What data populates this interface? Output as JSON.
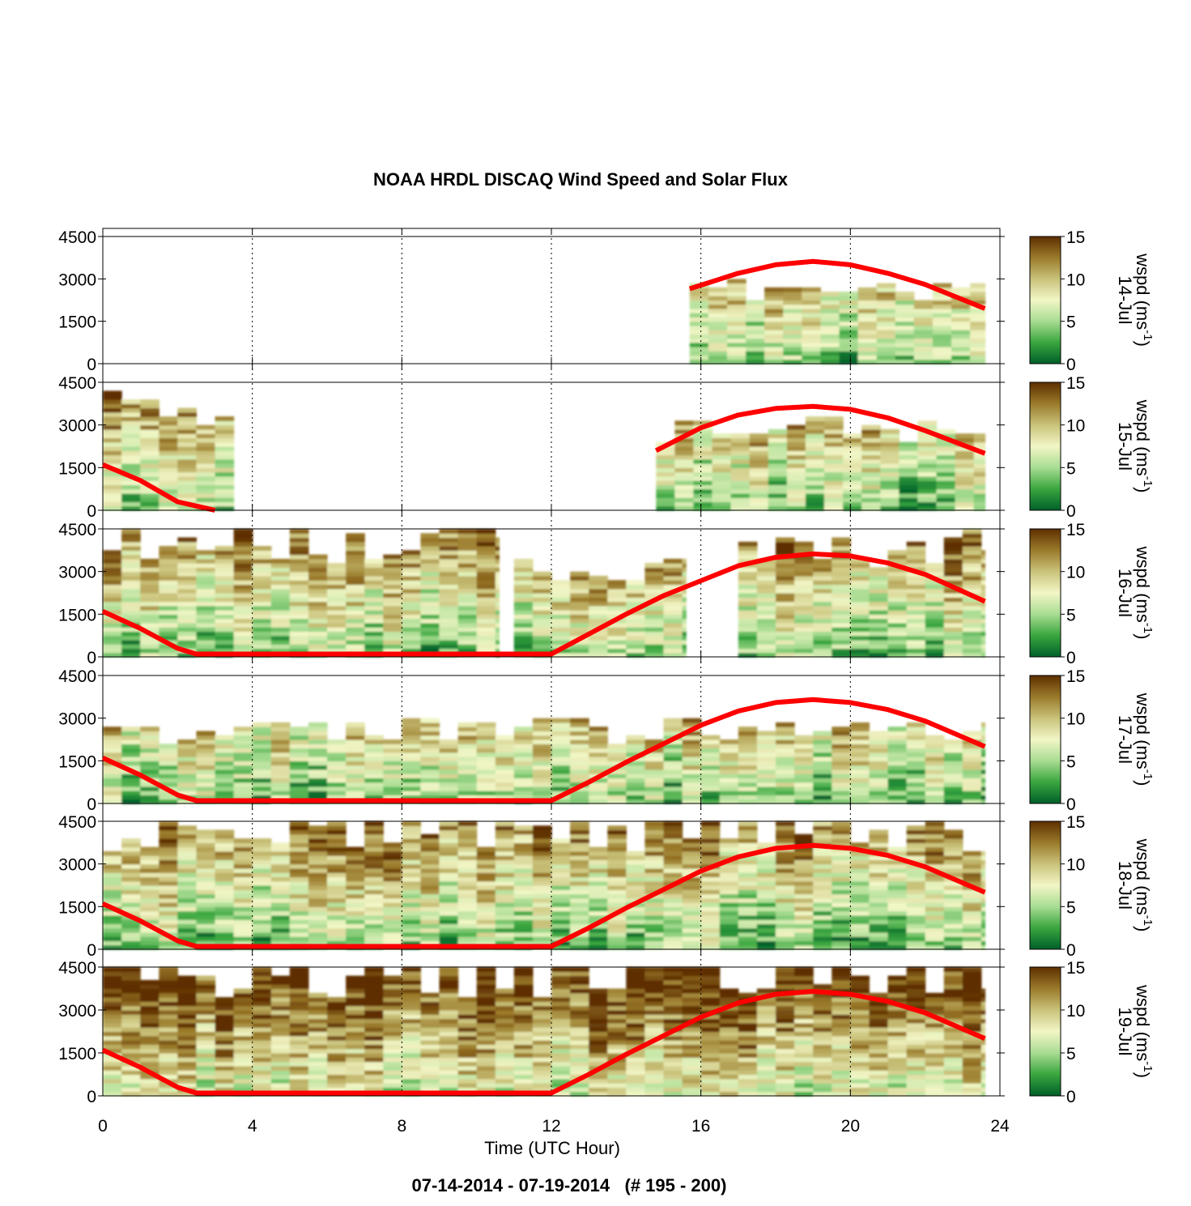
{
  "chart_data": {
    "type": "heatmap",
    "title": "NOAA HRDL DISCAQ Wind Speed and Solar Flux",
    "footer": "07-14-2014 - 07-19-2014   (# 195 - 200)",
    "xlabel": "Time (UTC Hour)",
    "xlim": [
      0,
      24
    ],
    "x_ticks": [
      "0",
      "4",
      "8",
      "12",
      "16",
      "20",
      "24"
    ],
    "ylim": [
      0,
      4500
    ],
    "y_ticks": [
      "0",
      "1500",
      "3000",
      "4500"
    ],
    "colorbar": {
      "label": "wspd (ms",
      "label_exponent": "-1",
      "label_close": ")",
      "range": [
        0,
        15
      ],
      "ticks": [
        "0",
        "5",
        "10",
        "15"
      ],
      "colors": [
        "#00602a",
        "#3aa63e",
        "#a8dc92",
        "#f2f6c6",
        "#c9c27a",
        "#9a7a2a",
        "#5e2f00"
      ]
    },
    "panels": [
      {
        "day_label": "14-Jul",
        "data_segments": [
          [
            15.7,
            23.6
          ]
        ],
        "blocks": [
          {
            "x0": 15.7,
            "x1": 23.6,
            "ytop": 2800
          }
        ],
        "solar_flux": [
          [
            15.7,
            2650
          ],
          [
            17,
            3200
          ],
          [
            18,
            3500
          ],
          [
            19,
            3620
          ],
          [
            20,
            3500
          ],
          [
            21,
            3200
          ],
          [
            22,
            2800
          ],
          [
            23.6,
            1950
          ]
        ]
      },
      {
        "day_label": "15-Jul",
        "data_segments": [
          [
            0,
            3.5
          ],
          [
            14.8,
            23.6
          ]
        ],
        "blocks": [
          {
            "x0": 0,
            "x1": 3.5,
            "ytop": 3800
          },
          {
            "x0": 14.8,
            "x1": 23.6,
            "ytop": 3000
          }
        ],
        "solar_flux": [
          [
            0,
            1600
          ],
          [
            1,
            1050
          ],
          [
            2,
            300
          ],
          [
            3,
            0
          ],
          [
            14.8,
            2100
          ],
          [
            16,
            2900
          ],
          [
            17,
            3350
          ],
          [
            18,
            3580
          ],
          [
            19,
            3650
          ],
          [
            20,
            3550
          ],
          [
            21,
            3250
          ],
          [
            22,
            2800
          ],
          [
            23.6,
            2000
          ]
        ]
      },
      {
        "day_label": "16-Jul",
        "data_segments": [
          [
            0,
            10.6
          ],
          [
            11,
            15.6
          ],
          [
            17,
            23.6
          ]
        ],
        "blocks": [
          {
            "x0": 0,
            "x1": 10.6,
            "ytop": 4300
          },
          {
            "x0": 11,
            "x1": 15.6,
            "ytop": 3400
          },
          {
            "x0": 17,
            "x1": 23.6,
            "ytop": 4000
          }
        ],
        "solar_flux": [
          [
            0,
            1600
          ],
          [
            1,
            1000
          ],
          [
            2,
            300
          ],
          [
            2.5,
            100
          ],
          [
            12,
            100
          ],
          [
            13,
            800
          ],
          [
            14,
            1500
          ],
          [
            15,
            2150
          ],
          [
            17,
            3200
          ],
          [
            18,
            3500
          ],
          [
            19,
            3620
          ],
          [
            20,
            3550
          ],
          [
            21,
            3300
          ],
          [
            22,
            2900
          ],
          [
            23.6,
            1950
          ]
        ]
      },
      {
        "day_label": "17-Jul",
        "data_segments": [
          [
            0,
            23.6
          ]
        ],
        "blocks": [
          {
            "x0": 0,
            "x1": 23.6,
            "ytop": 2700
          }
        ],
        "solar_flux": [
          [
            0,
            1600
          ],
          [
            1,
            1000
          ],
          [
            2,
            300
          ],
          [
            2.5,
            100
          ],
          [
            12,
            100
          ],
          [
            13,
            750
          ],
          [
            14,
            1450
          ],
          [
            15,
            2100
          ],
          [
            16,
            2750
          ],
          [
            17,
            3250
          ],
          [
            18,
            3550
          ],
          [
            19,
            3650
          ],
          [
            20,
            3550
          ],
          [
            21,
            3300
          ],
          [
            22,
            2900
          ],
          [
            23.6,
            2000
          ]
        ]
      },
      {
        "day_label": "18-Jul",
        "data_segments": [
          [
            0,
            23.6
          ]
        ],
        "blocks": [
          {
            "x0": 0,
            "x1": 23.6,
            "ytop": 4500
          }
        ],
        "solar_flux": [
          [
            0,
            1600
          ],
          [
            1,
            1000
          ],
          [
            2,
            300
          ],
          [
            2.5,
            100
          ],
          [
            12,
            100
          ],
          [
            13,
            750
          ],
          [
            14,
            1450
          ],
          [
            15,
            2100
          ],
          [
            16,
            2750
          ],
          [
            17,
            3250
          ],
          [
            18,
            3550
          ],
          [
            19,
            3650
          ],
          [
            20,
            3550
          ],
          [
            21,
            3300
          ],
          [
            22,
            2900
          ],
          [
            23.6,
            2000
          ]
        ]
      },
      {
        "day_label": "19-Jul",
        "data_segments": [
          [
            0,
            23.6
          ]
        ],
        "blocks": [
          {
            "x0": 0,
            "x1": 23.6,
            "ytop": 4500
          }
        ],
        "solar_flux": [
          [
            0,
            1600
          ],
          [
            1,
            1000
          ],
          [
            2,
            300
          ],
          [
            2.5,
            100
          ],
          [
            12,
            100
          ],
          [
            13,
            750
          ],
          [
            14,
            1450
          ],
          [
            15,
            2100
          ],
          [
            16,
            2750
          ],
          [
            17,
            3250
          ],
          [
            18,
            3550
          ],
          [
            19,
            3650
          ],
          [
            20,
            3550
          ],
          [
            21,
            3300
          ],
          [
            22,
            2900
          ],
          [
            23.6,
            2000
          ]
        ]
      }
    ]
  }
}
